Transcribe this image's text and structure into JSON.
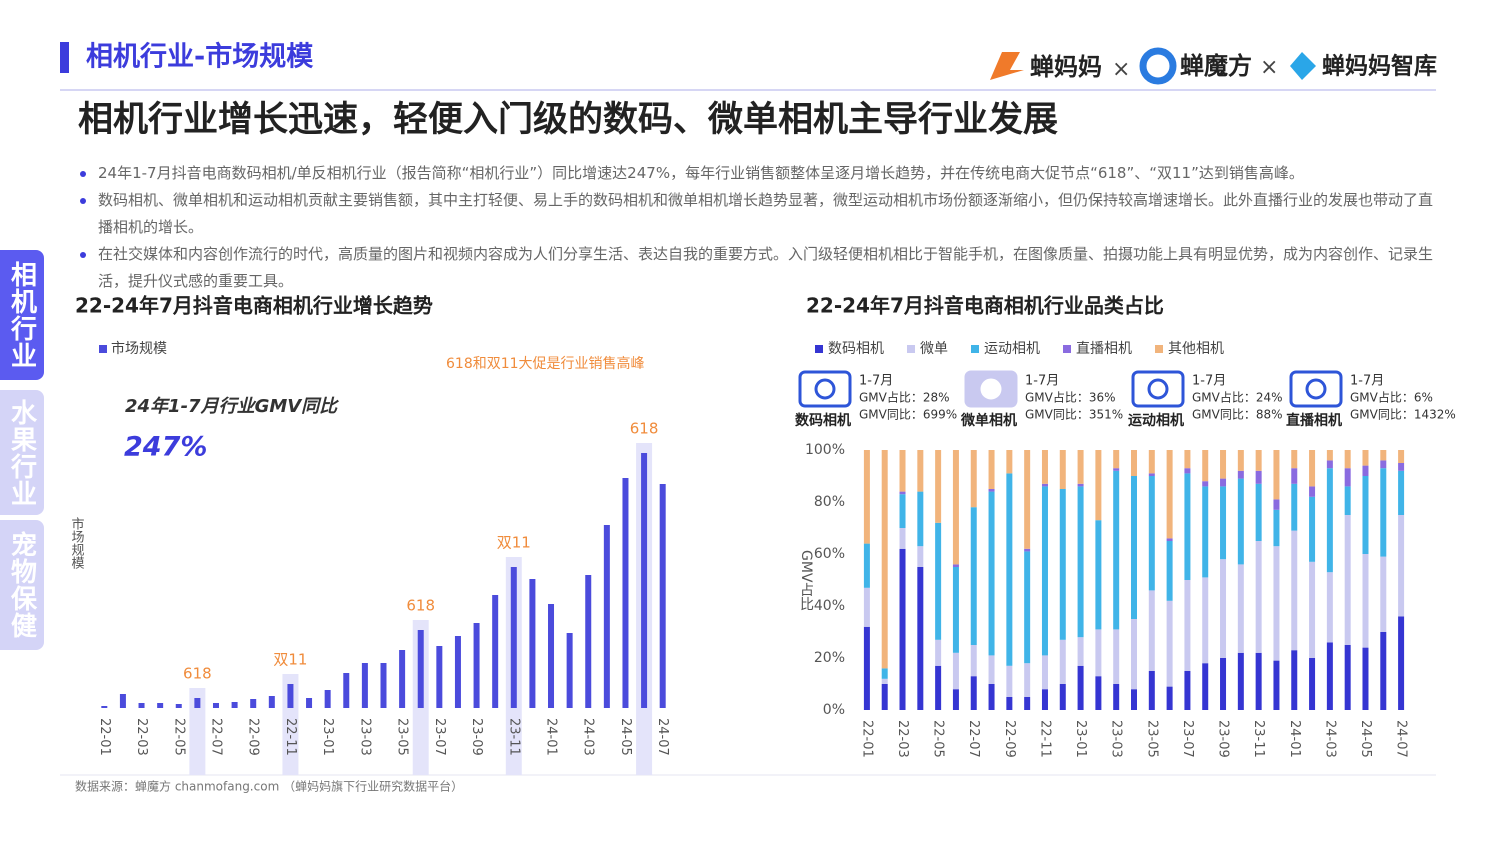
{
  "header": {
    "section": "相机行业-市场规模",
    "logos": [
      "蝉妈妈",
      "×",
      "蝉魔方",
      "×",
      "蝉妈妈智库"
    ],
    "title": "相机行业增长迅速，轻便入门级的数码、微单相机主导行业发展"
  },
  "bullets": [
    "24年1-7月抖音电商数码相机/单反相机行业（报告简称“相机行业”）同比增速达247%，每年行业销售额整体呈逐月增长趋势，并在传统电商大促节点“618”、“双11”达到销售高峰。",
    "数码相机、微单相机和运动相机贡献主要销售额，其中主打轻便、易上手的数码相机和微单相机增长趋势显著，微型运动相机市场份额逐渐缩小，但仍保持较高增速增长。此外直播行业的发展也带动了直播相机的增长。",
    "在社交媒体和内容创作流行的时代，高质量的图片和视频内容成为人们分享生活、表达自我的重要方式。入门级轻便相机相比于智能手机，在图像质量、拍摄功能上具有明显优势，成为内容创作、记录生活，提升仪式感的重要工具。"
  ],
  "side_tabs": [
    "相机行业",
    "水果行业",
    "宠物保健"
  ],
  "source": "数据来源：蝉魔方 chanmofang.com （蝉妈妈旗下行业研究数据平台）",
  "chart_data": [
    {
      "type": "bar",
      "title": "22-24年7月抖音电商相机行业增长趋势",
      "y_label": "市场规模",
      "legend": "市场规模",
      "color": "#4b4bdc",
      "annotation_color": "#f08c3c",
      "highlight_color": "#e4e4fa",
      "note": "618和双11大促是行业销售高峰",
      "kpi_label": "24年1-7月行业GMV同比",
      "kpi_value": "247%",
      "categories": [
        "22-01",
        null,
        "22-03",
        null,
        "22-05",
        null,
        "22-07",
        null,
        "22-09",
        null,
        "22-11",
        null,
        "23-01",
        null,
        "23-03",
        null,
        "23-05",
        null,
        "23-07",
        null,
        "23-09",
        null,
        "23-11",
        null,
        "24-01",
        null,
        "24-03",
        null,
        "24-05",
        null,
        "24-07"
      ],
      "values": [
        2,
        14,
        5,
        5,
        4,
        10,
        5,
        6,
        9,
        12,
        24,
        10,
        18,
        35,
        45,
        45,
        58,
        78,
        62,
        72,
        85,
        113,
        141,
        129,
        104,
        75,
        133,
        183,
        230,
        255,
        224
      ],
      "annotations": [
        null,
        null,
        null,
        null,
        null,
        "618",
        null,
        null,
        null,
        null,
        "双11",
        null,
        null,
        null,
        null,
        null,
        null,
        "618",
        null,
        null,
        null,
        null,
        "双11",
        null,
        null,
        null,
        null,
        null,
        null,
        "618",
        null
      ]
    },
    {
      "type": "stacked-bar",
      "title": "22-24年7月抖音电商相机行业品类占比",
      "y_label": "GMV占比",
      "ylim": [
        0,
        100
      ],
      "yticks": [
        {
          "value": 0,
          "label": "0%"
        },
        {
          "value": 20,
          "label": "20%"
        },
        {
          "value": 40,
          "label": "40%"
        },
        {
          "value": 60,
          "label": "60%"
        },
        {
          "value": 80,
          "label": "80%"
        },
        {
          "value": 100,
          "label": "100%"
        }
      ],
      "categories": [
        "22-01",
        null,
        "22-03",
        null,
        "22-05",
        null,
        "22-07",
        null,
        "22-09",
        null,
        "22-11",
        null,
        "23-01",
        null,
        "23-03",
        null,
        "23-05",
        null,
        "23-07",
        null,
        "23-09",
        null,
        "23-11",
        null,
        "24-01",
        null,
        "24-03",
        null,
        "24-05",
        null,
        "24-07"
      ],
      "series": [
        {
          "name": "数码相机",
          "color": "#3535d2",
          "values": [
            32,
            10,
            62,
            55,
            17,
            8,
            13,
            10,
            5,
            5,
            8,
            10,
            17,
            13,
            10,
            8,
            15,
            9,
            15,
            18,
            20,
            22,
            22,
            19,
            23,
            20,
            26,
            25,
            24,
            30,
            36
          ]
        },
        {
          "name": "微单",
          "color": "#c9c9f0",
          "values": [
            15,
            2,
            8,
            8,
            10,
            14,
            12,
            11,
            12,
            13,
            13,
            17,
            11,
            18,
            21,
            27,
            31,
            33,
            35,
            33,
            38,
            34,
            43,
            44,
            46,
            37,
            27,
            50,
            36,
            29,
            39
          ]
        },
        {
          "name": "运动相机",
          "color": "#40b4e8",
          "values": [
            17,
            4,
            13,
            21,
            45,
            33,
            53,
            63,
            74,
            43,
            65,
            58,
            58,
            42,
            61,
            55,
            44,
            23,
            41,
            35,
            28,
            33,
            22,
            14,
            18,
            25,
            40,
            11,
            30,
            34,
            17
          ]
        },
        {
          "name": "直播相机",
          "color": "#8a6be0",
          "values": [
            0,
            0,
            1,
            0,
            0,
            1,
            0,
            1,
            0,
            1,
            1,
            0,
            1,
            0,
            1,
            0,
            1,
            1,
            2,
            2,
            3,
            3,
            5,
            4,
            6,
            4,
            3,
            7,
            4,
            3,
            3
          ]
        },
        {
          "name": "其他相机",
          "color": "#f1b47c",
          "values": [
            36,
            84,
            16,
            16,
            28,
            44,
            22,
            15,
            9,
            38,
            13,
            15,
            13,
            27,
            7,
            10,
            9,
            34,
            7,
            12,
            11,
            8,
            8,
            19,
            7,
            14,
            4,
            7,
            6,
            4,
            5
          ]
        }
      ],
      "cards": [
        {
          "name": "数码相机",
          "period": "1-7月",
          "share": "GMV占比：28%",
          "yoy": "GMV同比：699%"
        },
        {
          "name": "微单相机",
          "period": "1-7月",
          "share": "GMV占比：36%",
          "yoy": "GMV同比：351%"
        },
        {
          "name": "运动相机",
          "period": "1-7月",
          "share": "GMV占比：24%",
          "yoy": "GMV同比：88%"
        },
        {
          "name": "直播相机",
          "period": "1-7月",
          "share": "GMV占比：6%",
          "yoy": "GMV同比：1432%"
        }
      ]
    }
  ]
}
